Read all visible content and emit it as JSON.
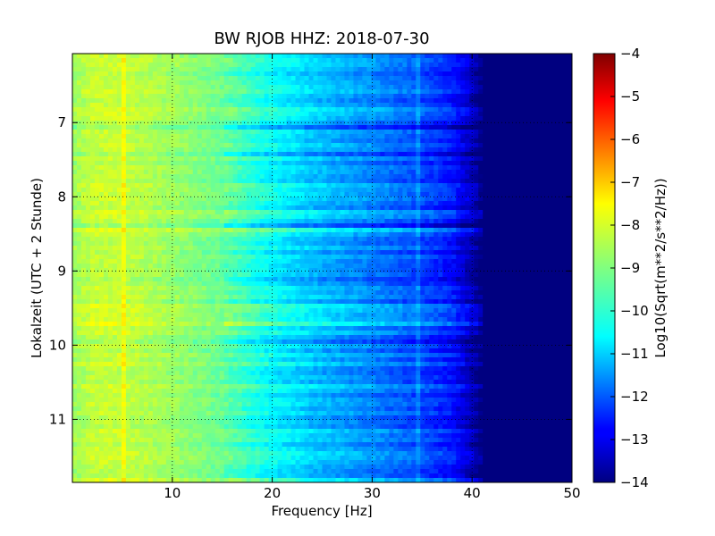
{
  "chart_data": {
    "type": "heatmap",
    "title": "BW RJOB HHZ: 2018-07-30",
    "xlabel": "Frequency [Hz]",
    "ylabel": "Lokalzeit (UTC + 2 Stunde)",
    "xlim": [
      0,
      50
    ],
    "ylim": [
      6.07,
      11.85
    ],
    "y_inverted": true,
    "x_ticks": [
      10,
      20,
      30,
      40,
      50
    ],
    "x_tick_labels": [
      "10",
      "20",
      "30",
      "40",
      "50"
    ],
    "y_ticks": [
      7,
      8,
      9,
      10,
      11
    ],
    "y_tick_labels": [
      "7",
      "8",
      "9",
      "10",
      "11"
    ],
    "grid": true,
    "colormap": "jet",
    "colorbar": {
      "label": "Log10(Sqrt(m**2/s**2/Hz))",
      "min": -14,
      "max": -4,
      "ticks": [
        -4,
        -5,
        -6,
        -7,
        -8,
        -9,
        -10,
        -11,
        -12,
        -13,
        -14
      ],
      "tick_labels": [
        "−4",
        "−5",
        "−6",
        "−7",
        "−8",
        "−9",
        "−10",
        "−11",
        "−12",
        "−13",
        "−14"
      ]
    },
    "spectrum_profile": {
      "frequency_hz": [
        0,
        2,
        5,
        10,
        15,
        20,
        25,
        30,
        35,
        38,
        40,
        41,
        50
      ],
      "log10_amplitude": [
        -8.7,
        -8.3,
        -8.3,
        -8.7,
        -9.2,
        -10.2,
        -10.9,
        -11.4,
        -12.0,
        -12.5,
        -13.4,
        -14.0,
        -14.0
      ]
    },
    "narrow_band_features_hz": [
      5.0,
      34.5
    ]
  }
}
